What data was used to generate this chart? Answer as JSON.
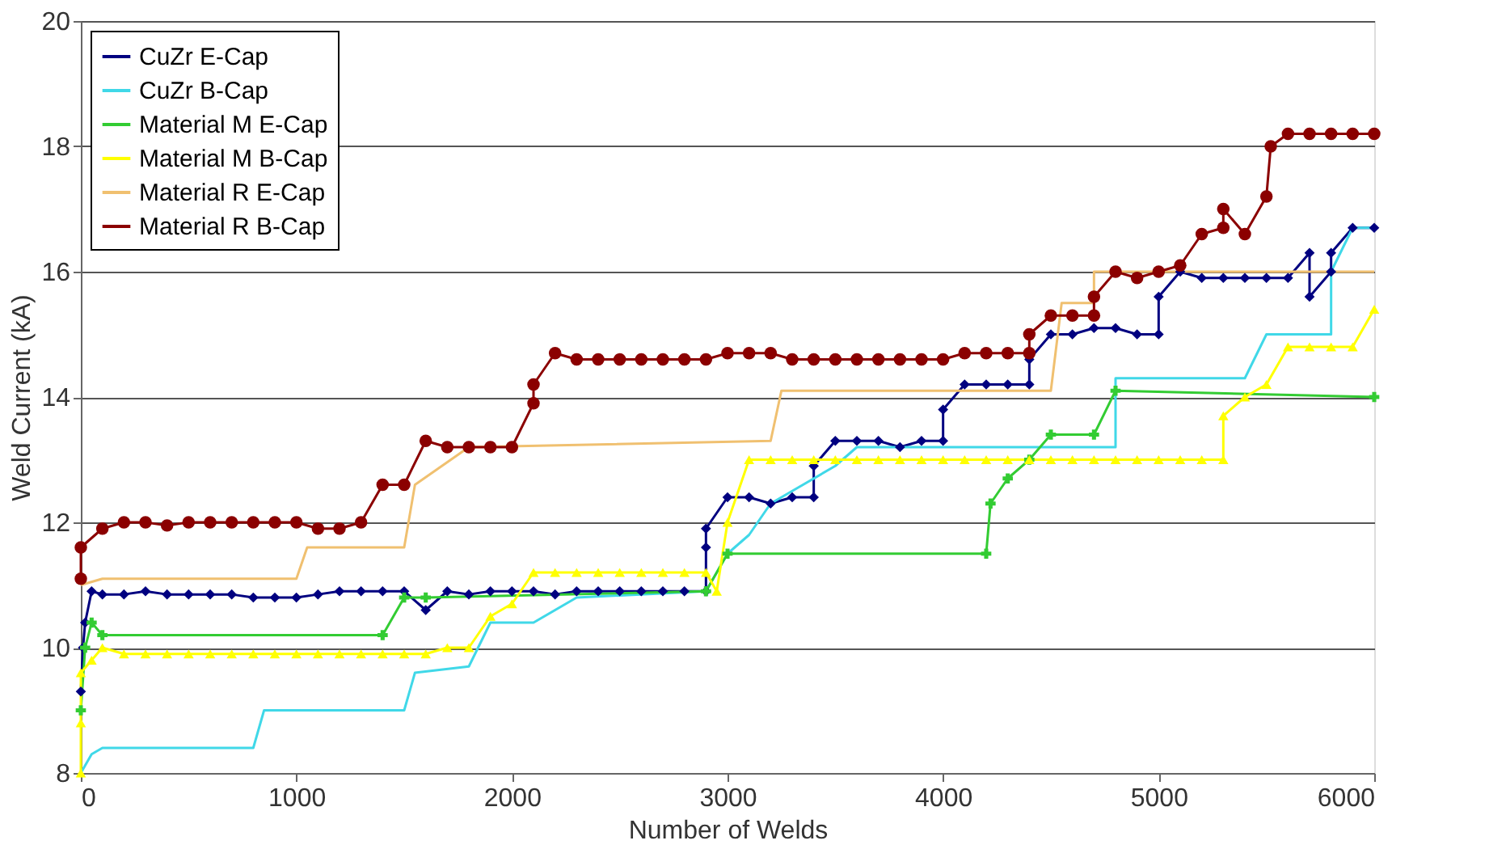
{
  "chart_data": {
    "type": "line",
    "xlabel": "Number of Welds",
    "ylabel": "Weld Current (kA)",
    "xlim": [
      0,
      6000
    ],
    "xticks": [
      0,
      1000,
      2000,
      3000,
      4000,
      5000,
      6000
    ],
    "ylim": [
      8,
      20
    ],
    "yticks": [
      8,
      10,
      12,
      14,
      16,
      18,
      20
    ],
    "grid": "y",
    "legend": "top left",
    "series": [
      {
        "name": "CuZr E-Cap",
        "color": "#000080",
        "marker": "diamond",
        "x": [
          0,
          10,
          20,
          50,
          100,
          200,
          300,
          400,
          500,
          600,
          700,
          800,
          900,
          1000,
          1100,
          1200,
          1300,
          1400,
          1500,
          1600,
          1700,
          1800,
          1900,
          2000,
          2100,
          2200,
          2300,
          2400,
          2500,
          2600,
          2700,
          2800,
          2900,
          2900,
          2900,
          3000,
          3100,
          3200,
          3300,
          3400,
          3400,
          3500,
          3600,
          3700,
          3800,
          3900,
          4000,
          4000,
          4100,
          4200,
          4300,
          4400,
          4400,
          4500,
          4600,
          4700,
          4800,
          4900,
          5000,
          5000,
          5100,
          5200,
          5300,
          5400,
          5500,
          5600,
          5700,
          5700,
          5800,
          5800,
          5900,
          6000
        ],
        "values": [
          9.3,
          10.0,
          10.4,
          10.9,
          10.85,
          10.85,
          10.9,
          10.85,
          10.85,
          10.85,
          10.85,
          10.8,
          10.8,
          10.8,
          10.85,
          10.9,
          10.9,
          10.9,
          10.9,
          10.6,
          10.9,
          10.85,
          10.9,
          10.9,
          10.9,
          10.85,
          10.9,
          10.9,
          10.9,
          10.9,
          10.9,
          10.9,
          10.9,
          11.6,
          11.9,
          12.4,
          12.4,
          12.3,
          12.4,
          12.4,
          12.9,
          13.3,
          13.3,
          13.3,
          13.2,
          13.3,
          13.3,
          13.8,
          14.2,
          14.2,
          14.2,
          14.2,
          14.6,
          15.0,
          15.0,
          15.1,
          15.1,
          15.0,
          15.0,
          15.6,
          16.0,
          15.9,
          15.9,
          15.9,
          15.9,
          15.9,
          16.3,
          15.6,
          16.0,
          16.3,
          16.7,
          16.7
        ]
      },
      {
        "name": "CuZr B-Cap",
        "color": "#40d8e8",
        "marker": "none",
        "x": [
          0,
          50,
          100,
          800,
          850,
          1500,
          1550,
          1800,
          1900,
          2100,
          2300,
          2900,
          3000,
          3100,
          3200,
          3300,
          3500,
          3600,
          4000,
          4800,
          4800,
          5400,
          5500,
          5800,
          5800,
          5900,
          6000
        ],
        "values": [
          8.0,
          8.3,
          8.4,
          8.4,
          9.0,
          9.0,
          9.6,
          9.7,
          10.4,
          10.4,
          10.8,
          10.9,
          11.5,
          11.8,
          12.3,
          12.5,
          12.9,
          13.2,
          13.2,
          13.2,
          14.3,
          14.3,
          15.0,
          15.0,
          16.0,
          16.7,
          16.7
        ]
      },
      {
        "name": "Material M E-Cap",
        "color": "#33cc33",
        "marker": "cross",
        "x": [
          0,
          20,
          50,
          100,
          1400,
          1500,
          1600,
          2900,
          3000,
          4200,
          4220,
          4300,
          4400,
          4500,
          4700,
          4800,
          6000
        ],
        "values": [
          9.0,
          10.0,
          10.4,
          10.2,
          10.2,
          10.8,
          10.8,
          10.9,
          11.5,
          11.5,
          12.3,
          12.7,
          13.0,
          13.4,
          13.4,
          14.1,
          14.0
        ]
      },
      {
        "name": "Material M B-Cap",
        "color": "#ffff00",
        "marker": "triangle",
        "x": [
          0,
          0,
          0,
          50,
          100,
          200,
          300,
          400,
          500,
          600,
          700,
          800,
          900,
          1000,
          1100,
          1200,
          1300,
          1400,
          1500,
          1600,
          1700,
          1800,
          1900,
          2000,
          2100,
          2200,
          2300,
          2400,
          2500,
          2600,
          2700,
          2800,
          2900,
          2950,
          3000,
          3100,
          3200,
          3300,
          3400,
          3500,
          3600,
          3700,
          3800,
          3900,
          4000,
          4100,
          4200,
          4300,
          4400,
          4500,
          4600,
          4700,
          4800,
          4900,
          5000,
          5100,
          5200,
          5300,
          5300,
          5400,
          5500,
          5600,
          5700,
          5800,
          5900,
          6000
        ],
        "values": [
          8.0,
          8.8,
          9.6,
          9.8,
          10.0,
          9.9,
          9.9,
          9.9,
          9.9,
          9.9,
          9.9,
          9.9,
          9.9,
          9.9,
          9.9,
          9.9,
          9.9,
          9.9,
          9.9,
          9.9,
          10.0,
          10.0,
          10.5,
          10.7,
          11.2,
          11.2,
          11.2,
          11.2,
          11.2,
          11.2,
          11.2,
          11.2,
          11.2,
          10.9,
          12.0,
          13.0,
          13.0,
          13.0,
          13.0,
          13.0,
          13.0,
          13.0,
          13.0,
          13.0,
          13.0,
          13.0,
          13.0,
          13.0,
          13.0,
          13.0,
          13.0,
          13.0,
          13.0,
          13.0,
          13.0,
          13.0,
          13.0,
          13.0,
          13.7,
          14.0,
          14.2,
          14.8,
          14.8,
          14.8,
          14.8,
          15.4
        ]
      },
      {
        "name": "Material R E-Cap",
        "color": "#f0c070",
        "marker": "none",
        "x": [
          0,
          100,
          1000,
          1050,
          1500,
          1550,
          1800,
          3200,
          3250,
          4500,
          4550,
          4700,
          4700,
          5800,
          6000
        ],
        "values": [
          11.0,
          11.1,
          11.1,
          11.6,
          11.6,
          12.6,
          13.2,
          13.3,
          14.1,
          14.1,
          15.5,
          15.5,
          16.0,
          16.0,
          16.0
        ]
      },
      {
        "name": "Material R B-Cap",
        "color": "#8b0000",
        "marker": "circle",
        "x": [
          0,
          0,
          100,
          200,
          300,
          400,
          500,
          600,
          700,
          800,
          900,
          1000,
          1100,
          1200,
          1300,
          1400,
          1500,
          1600,
          1700,
          1800,
          1900,
          2000,
          2100,
          2100,
          2200,
          2300,
          2400,
          2500,
          2600,
          2700,
          2800,
          2900,
          3000,
          3100,
          3200,
          3300,
          3400,
          3500,
          3600,
          3700,
          3800,
          3900,
          4000,
          4100,
          4200,
          4300,
          4400,
          4400,
          4500,
          4600,
          4700,
          4700,
          4800,
          4900,
          5000,
          5100,
          5200,
          5300,
          5300,
          5400,
          5500,
          5520,
          5600,
          5700,
          5800,
          5900,
          6000
        ],
        "values": [
          11.1,
          11.6,
          11.9,
          12.0,
          12.0,
          11.95,
          12.0,
          12.0,
          12.0,
          12.0,
          12.0,
          12.0,
          11.9,
          11.9,
          12.0,
          12.6,
          12.6,
          13.3,
          13.2,
          13.2,
          13.2,
          13.2,
          13.9,
          14.2,
          14.7,
          14.6,
          14.6,
          14.6,
          14.6,
          14.6,
          14.6,
          14.6,
          14.7,
          14.7,
          14.7,
          14.6,
          14.6,
          14.6,
          14.6,
          14.6,
          14.6,
          14.6,
          14.6,
          14.7,
          14.7,
          14.7,
          14.7,
          15.0,
          15.3,
          15.3,
          15.3,
          15.6,
          16.0,
          15.9,
          16.0,
          16.1,
          16.6,
          16.7,
          17.0,
          16.6,
          17.2,
          18.0,
          18.2,
          18.2,
          18.2,
          18.2,
          18.2
        ]
      }
    ]
  }
}
